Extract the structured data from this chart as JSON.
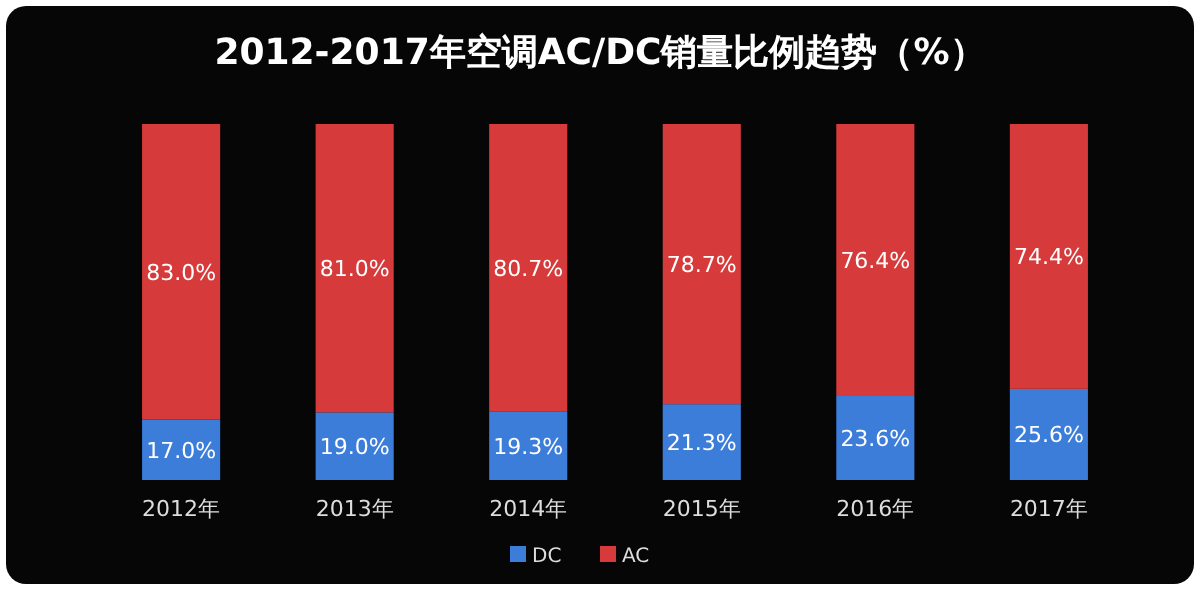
{
  "chart_data": {
    "type": "bar",
    "title": "2012-2017年空调AC/DC销量比例趋势（%）",
    "categories": [
      "2012年",
      "2013年",
      "2014年",
      "2015年",
      "2016年",
      "2017年"
    ],
    "stacked": true,
    "legend": "bottom",
    "series": [
      {
        "name": "DC",
        "color": "#3b7dd8",
        "values": [
          17.0,
          19.0,
          19.3,
          21.3,
          23.6,
          25.6
        ],
        "value_labels": [
          "17.0%",
          "19.0%",
          "19.3%",
          "21.3%",
          "23.6%",
          "25.6%"
        ]
      },
      {
        "name": "AC",
        "color": "#d63a3a",
        "values": [
          83.0,
          81.0,
          80.7,
          78.7,
          76.4,
          74.4
        ],
        "value_labels": [
          "83.0%",
          "81.0%",
          "80.7%",
          "78.7%",
          "76.4%",
          "74.4%"
        ]
      }
    ]
  }
}
